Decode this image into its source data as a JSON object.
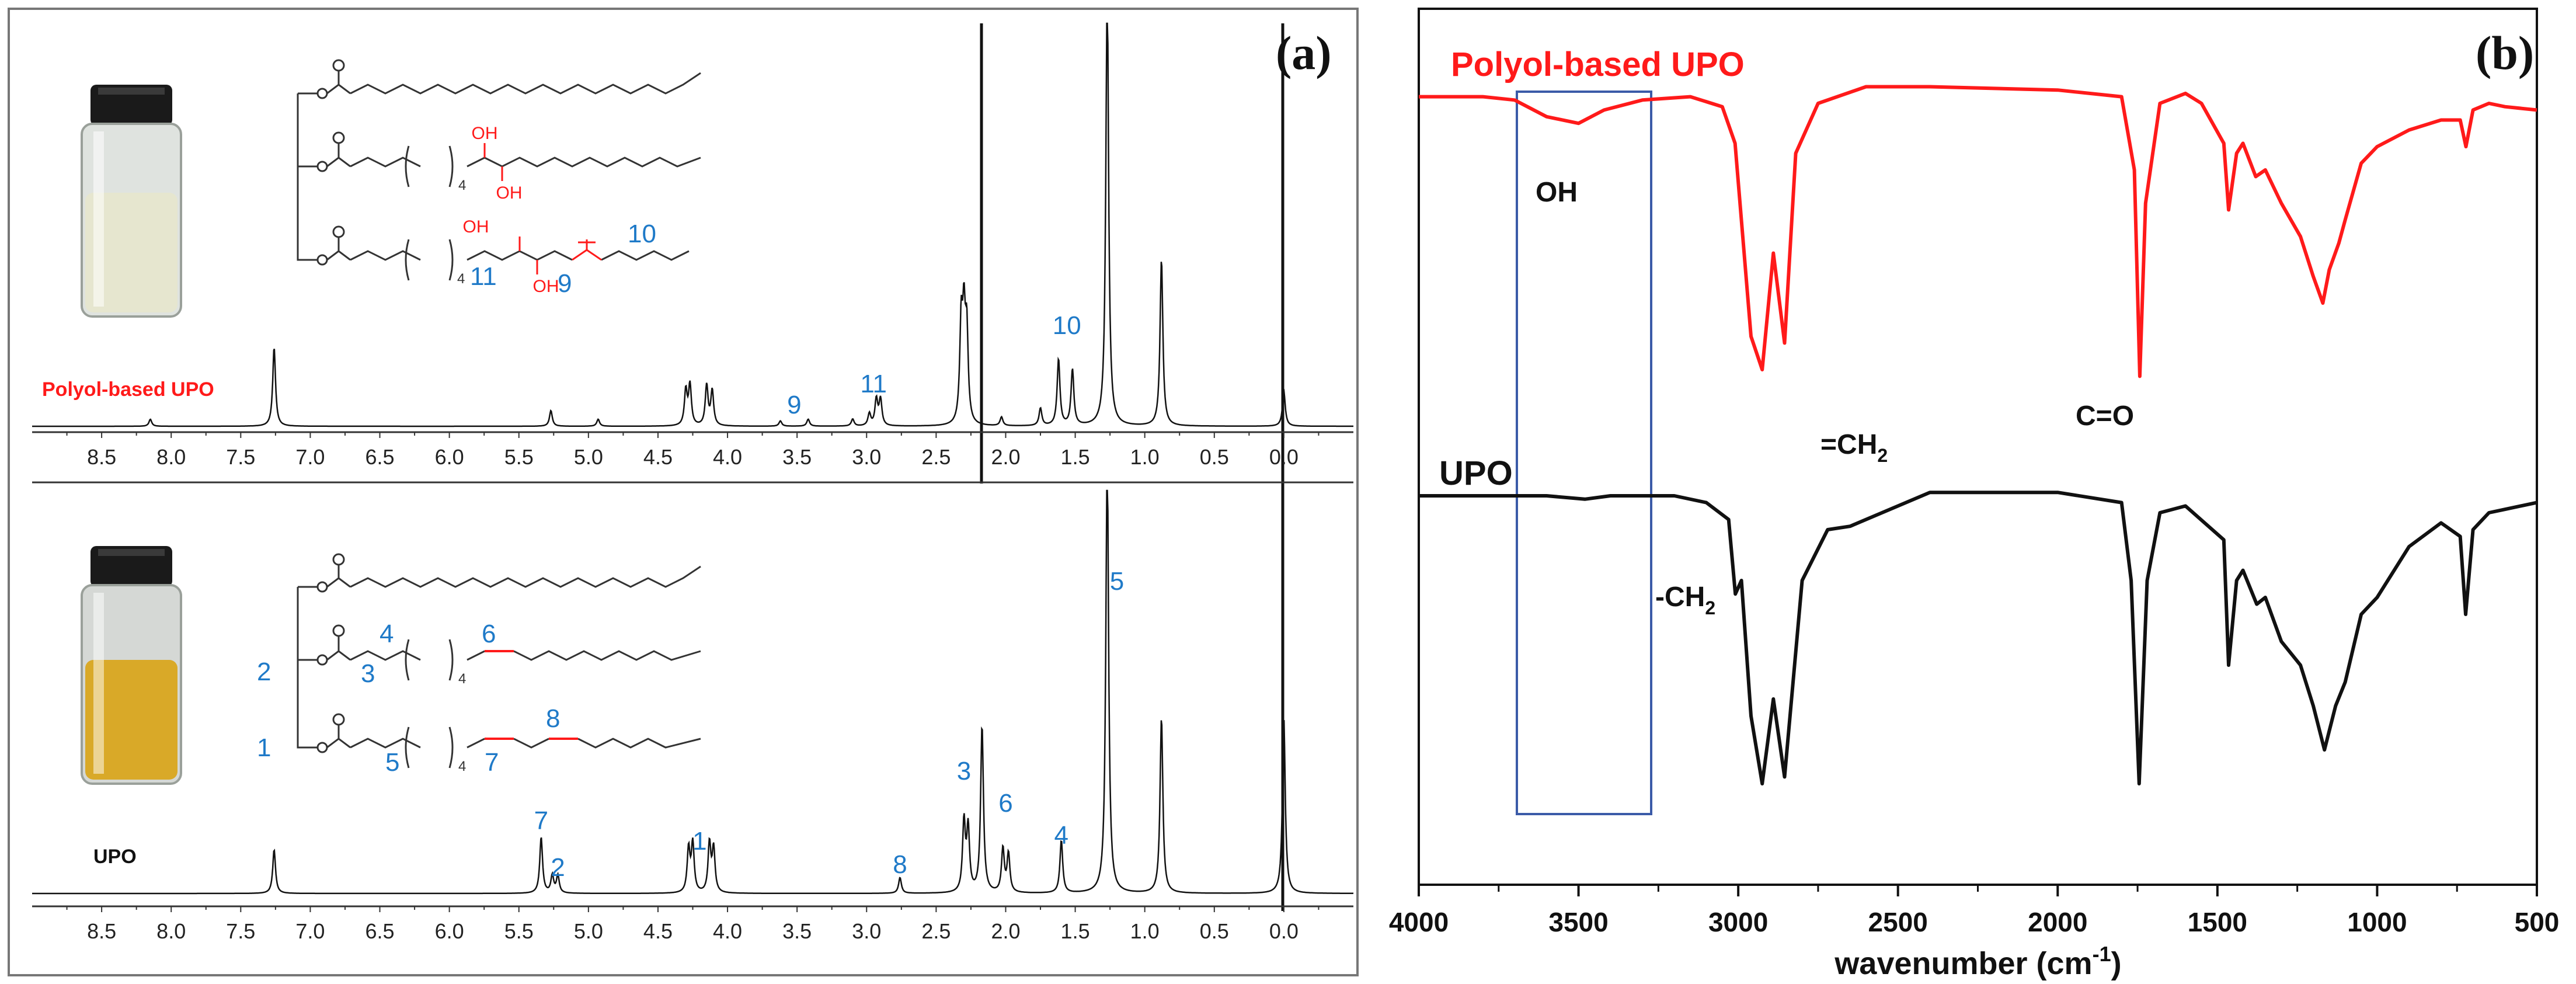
{
  "panel_a": {
    "label": "(a)",
    "top": {
      "sample_label": "Polyol-based UPO",
      "peak_labels": [
        {
          "text": "9",
          "ppm": 3.52
        },
        {
          "text": "11",
          "ppm": 2.95
        },
        {
          "text": "10",
          "ppm": 1.56
        }
      ],
      "structure_labels": [
        "4",
        "4",
        "11",
        "9",
        "10"
      ],
      "structure_oh": [
        "OH",
        "OH",
        "OH",
        "OH"
      ]
    },
    "bottom": {
      "sample_label": "UPO",
      "peak_labels": [
        {
          "text": "7",
          "ppm": 5.34
        },
        {
          "text": "2",
          "ppm": 5.22
        },
        {
          "text": "1",
          "ppm": 4.2
        },
        {
          "text": "8",
          "ppm": 2.76
        },
        {
          "text": "3",
          "ppm": 2.3
        },
        {
          "text": "6",
          "ppm": 2.0
        },
        {
          "text": "4",
          "ppm": 1.6
        },
        {
          "text": "5",
          "ppm": 1.2
        }
      ],
      "structure_labels": [
        "4",
        "6",
        "2",
        "3",
        "4",
        "8",
        "1",
        "5",
        "4",
        "7"
      ]
    },
    "tick_labels": [
      "8.5",
      "8.0",
      "7.5",
      "7.0",
      "6.5",
      "6.0",
      "5.5",
      "5.0",
      "4.5",
      "4.0",
      "3.5",
      "3.0",
      "2.5",
      "2.0",
      "1.5",
      "1.0",
      "0.5",
      "0.0"
    ]
  },
  "panel_b": {
    "label": "(b)",
    "series_red_label": "Polyol-based UPO",
    "series_black_label": "UPO",
    "xlabel": "wavenumber (cm",
    "xlabel_sup": "-1",
    "xlabel_close": ")",
    "annotations": {
      "oh": "OH",
      "co": "C=O",
      "ch2_eq": "=CH",
      "ch2_eq_sub": "2",
      "ch2": "-CH",
      "ch2_sub": "2"
    },
    "tick_labels": [
      "4000",
      "3500",
      "3000",
      "2500",
      "2000",
      "1500",
      "1000",
      "500"
    ]
  },
  "colors": {
    "red": "#ff1a1a",
    "black": "#111111",
    "blue_label": "#1f7ac8",
    "box": "#3b5ba8",
    "axis": "#333333",
    "vial_top_liquid": "#e6e6cf",
    "vial_bottom_liquid": "#d9a928"
  },
  "chart_data": [
    {
      "type": "line",
      "title": "",
      "xlabel": "",
      "ylabel": "",
      "xlim": [
        9.0,
        -0.5
      ],
      "x_reversed": true,
      "series": [
        {
          "name": "Polyol-based UPO",
          "peaks": [
            {
              "ppm": 8.15,
              "h": 0.04
            },
            {
              "ppm": 7.26,
              "h": 0.45
            },
            {
              "ppm": 5.27,
              "h": 0.09
            },
            {
              "ppm": 4.93,
              "h": 0.04
            },
            {
              "ppm": 4.3,
              "h": 0.2
            },
            {
              "ppm": 4.27,
              "h": 0.23
            },
            {
              "ppm": 4.15,
              "h": 0.23
            },
            {
              "ppm": 4.11,
              "h": 0.2
            },
            {
              "ppm": 3.62,
              "h": 0.03
            },
            {
              "ppm": 3.42,
              "h": 0.04
            },
            {
              "ppm": 3.1,
              "h": 0.04
            },
            {
              "ppm": 2.98,
              "h": 0.07
            },
            {
              "ppm": 2.93,
              "h": 0.15
            },
            {
              "ppm": 2.9,
              "h": 0.15
            },
            {
              "ppm": 2.32,
              "h": 0.55
            },
            {
              "ppm": 2.3,
              "h": 0.55
            },
            {
              "ppm": 2.28,
              "h": 0.5
            },
            {
              "ppm": 2.03,
              "h": 0.05
            },
            {
              "ppm": 1.75,
              "h": 0.1
            },
            {
              "ppm": 1.62,
              "h": 0.38
            },
            {
              "ppm": 1.52,
              "h": 0.32
            },
            {
              "ppm": 1.27,
              "h": 2.5
            },
            {
              "ppm": 0.88,
              "h": 0.95
            },
            {
              "ppm": 0.0,
              "h": 0.2
            }
          ]
        },
        {
          "name": "UPO",
          "peaks": [
            {
              "ppm": 7.26,
              "h": 0.25
            },
            {
              "ppm": 5.34,
              "h": 0.32
            },
            {
              "ppm": 5.26,
              "h": 0.1
            },
            {
              "ppm": 5.22,
              "h": 0.1
            },
            {
              "ppm": 4.28,
              "h": 0.25
            },
            {
              "ppm": 4.25,
              "h": 0.28
            },
            {
              "ppm": 4.13,
              "h": 0.28
            },
            {
              "ppm": 4.1,
              "h": 0.25
            },
            {
              "ppm": 2.76,
              "h": 0.09
            },
            {
              "ppm": 2.3,
              "h": 0.4
            },
            {
              "ppm": 2.27,
              "h": 0.36
            },
            {
              "ppm": 2.17,
              "h": 0.95
            },
            {
              "ppm": 2.02,
              "h": 0.25
            },
            {
              "ppm": 1.98,
              "h": 0.22
            },
            {
              "ppm": 1.6,
              "h": 0.3
            },
            {
              "ppm": 1.27,
              "h": 2.5
            },
            {
              "ppm": 0.88,
              "h": 1.0
            },
            {
              "ppm": 0.0,
              "h": 1.0
            }
          ]
        }
      ]
    },
    {
      "type": "line",
      "title": "",
      "xlabel": "wavenumber (cm-1)",
      "ylabel": "",
      "xlim": [
        4000,
        500
      ],
      "x_reversed": true,
      "series": [
        {
          "name": "Polyol-based UPO",
          "x": [
            4000,
            3800,
            3700,
            3600,
            3500,
            3420,
            3300,
            3150,
            3050,
            3010,
            2960,
            2925,
            2890,
            2855,
            2820,
            2750,
            2600,
            2400,
            2000,
            1800,
            1760,
            1743,
            1725,
            1680,
            1600,
            1550,
            1480,
            1465,
            1440,
            1420,
            1380,
            1350,
            1300,
            1240,
            1200,
            1170,
            1150,
            1120,
            1100,
            1050,
            1000,
            900,
            800,
            740,
            722,
            700,
            650,
            600,
            500
          ],
          "y": [
            0.92,
            0.92,
            0.91,
            0.86,
            0.84,
            0.88,
            0.91,
            0.92,
            0.89,
            0.78,
            0.2,
            0.1,
            0.45,
            0.18,
            0.75,
            0.9,
            0.95,
            0.95,
            0.94,
            0.92,
            0.7,
            0.08,
            0.6,
            0.9,
            0.93,
            0.9,
            0.78,
            0.58,
            0.75,
            0.78,
            0.68,
            0.7,
            0.6,
            0.5,
            0.38,
            0.3,
            0.4,
            0.48,
            0.55,
            0.72,
            0.77,
            0.82,
            0.85,
            0.85,
            0.77,
            0.88,
            0.9,
            0.89,
            0.88
          ]
        },
        {
          "name": "UPO",
          "x": [
            4000,
            3800,
            3600,
            3480,
            3400,
            3200,
            3100,
            3030,
            3009,
            2990,
            2960,
            2925,
            2890,
            2855,
            2800,
            2720,
            2650,
            2400,
            2000,
            1800,
            1770,
            1745,
            1720,
            1680,
            1600,
            1480,
            1465,
            1440,
            1420,
            1377,
            1350,
            1300,
            1240,
            1200,
            1165,
            1130,
            1100,
            1050,
            1000,
            900,
            800,
            740,
            723,
            700,
            650,
            600,
            500
          ],
          "y": [
            0.95,
            0.95,
            0.95,
            0.94,
            0.95,
            0.95,
            0.93,
            0.88,
            0.66,
            0.7,
            0.3,
            0.1,
            0.35,
            0.12,
            0.7,
            0.85,
            0.86,
            0.96,
            0.96,
            0.93,
            0.7,
            0.1,
            0.7,
            0.9,
            0.92,
            0.82,
            0.45,
            0.7,
            0.73,
            0.63,
            0.65,
            0.52,
            0.45,
            0.33,
            0.2,
            0.33,
            0.4,
            0.6,
            0.65,
            0.8,
            0.87,
            0.83,
            0.6,
            0.85,
            0.9,
            0.91,
            0.93
          ]
        }
      ]
    }
  ]
}
